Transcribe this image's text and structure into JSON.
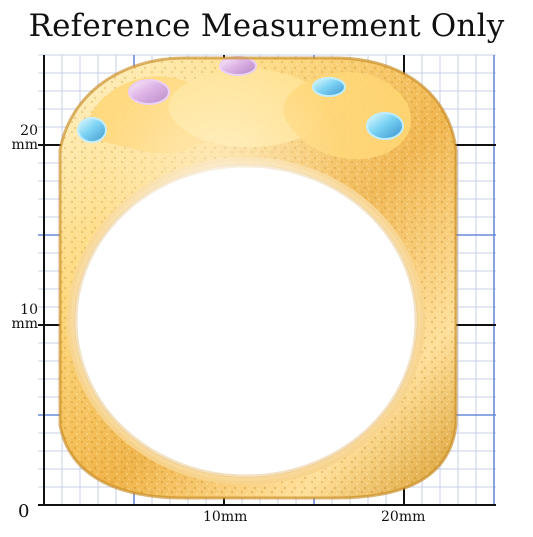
{
  "header": {
    "title": "Reference Measurement Only"
  },
  "measurement_grid": {
    "x_axis": {
      "origin_label": "0",
      "tick_labels": [
        "10mm",
        "20mm"
      ]
    },
    "y_axis": {
      "tick_values": [
        "20",
        "10"
      ],
      "unit": "mm"
    },
    "colors": {
      "minor_grid": "#c8d0e6",
      "major_blue": "#6a8ad8",
      "major_black": "#111111",
      "gold_light": "#ffe9a3",
      "gold_mid": "#f2c15b",
      "gold_deep": "#d89b2c",
      "pink_stone": "#d8a7e2",
      "aqua_stone": "#6fd0f3"
    }
  }
}
